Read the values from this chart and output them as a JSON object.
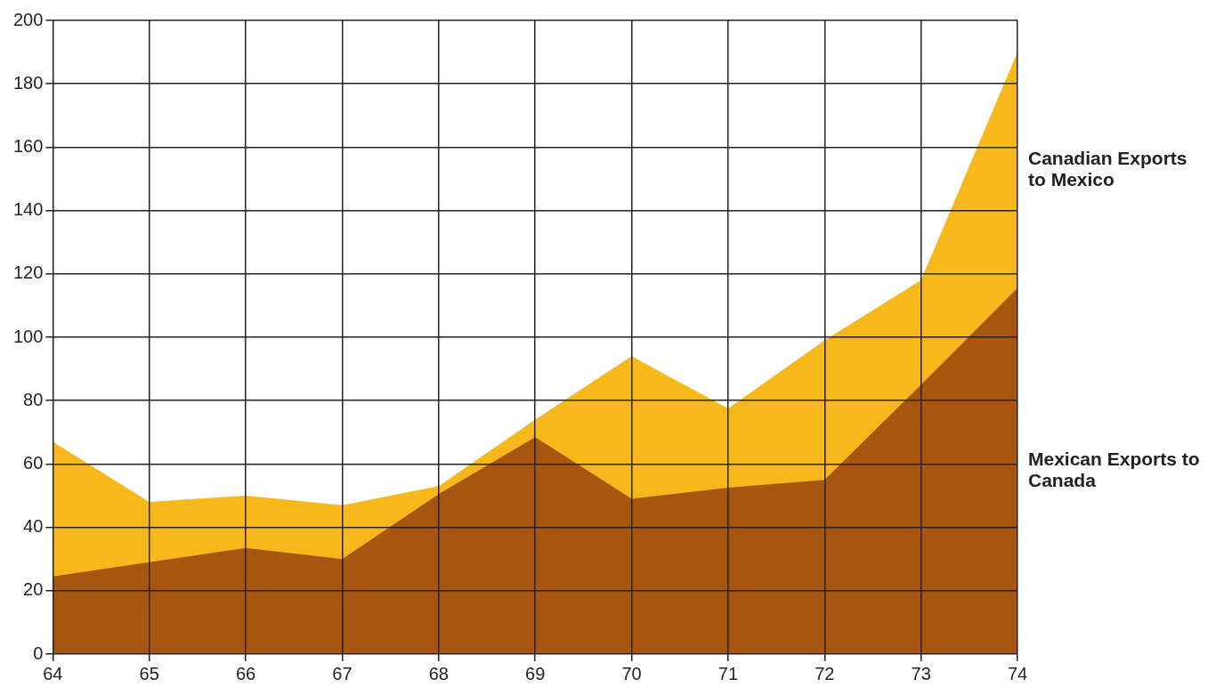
{
  "chart_data": {
    "type": "area",
    "x": [
      64,
      65,
      66,
      67,
      68,
      69,
      70,
      71,
      72,
      73,
      74
    ],
    "series": [
      {
        "name": "Canadian Exports to Mexico",
        "color": "#f7b81c",
        "values": [
          67,
          48,
          50,
          47,
          53,
          74,
          94,
          77.5,
          99,
          118,
          190
        ]
      },
      {
        "name": "Mexican Exports to Canada",
        "color": "#a8560f",
        "values": [
          24.5,
          29,
          33.5,
          30,
          50.5,
          68.5,
          49,
          52.5,
          55,
          85,
          115.5
        ]
      }
    ],
    "xlim": [
      64,
      74
    ],
    "xticks": [
      64,
      65,
      66,
      67,
      68,
      69,
      70,
      71,
      72,
      73,
      74
    ],
    "ylim": [
      0,
      200
    ],
    "yticks": [
      0,
      20,
      40,
      60,
      80,
      100,
      120,
      140,
      160,
      180,
      200
    ],
    "grid": true,
    "legend": false
  }
}
